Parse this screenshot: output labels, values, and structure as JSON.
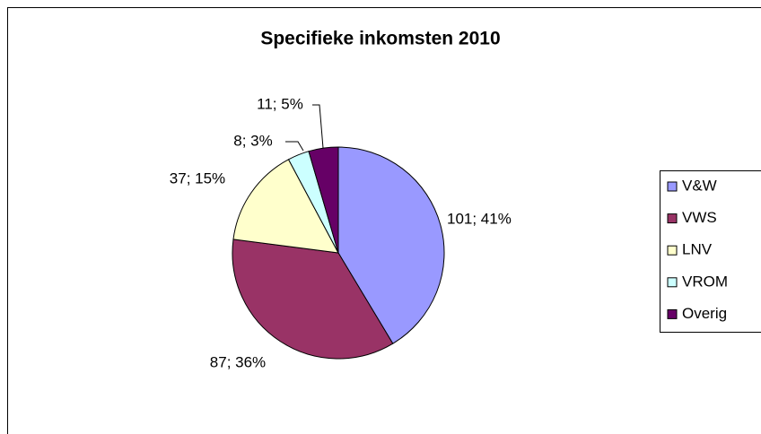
{
  "chart_data": {
    "type": "pie",
    "title": "Specifieke inkomsten 2010",
    "categories": [
      "V&W",
      "VWS",
      "LNV",
      "VROM",
      "Overig"
    ],
    "values": [
      101,
      87,
      37,
      8,
      11
    ],
    "value_labels": [
      "101; 41%",
      "87; 36%",
      "37; 15%",
      "8; 3%",
      "11; 5%"
    ],
    "colors": [
      "#9999ff",
      "#993366",
      "#ffffcc",
      "#ccffff",
      "#660066"
    ],
    "legend": "right"
  }
}
